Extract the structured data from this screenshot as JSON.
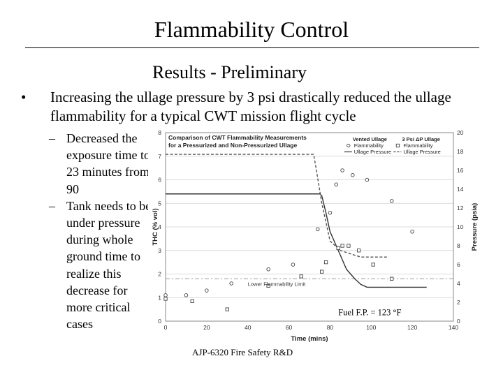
{
  "slide": {
    "title": "Flammability Control",
    "subtitle": "Results - Preliminary",
    "bullet_marker": "•",
    "bullet": "Increasing the ullage pressure by 3 psi drastically reduced the ullage flammability for a typical CWT mission flight cycle",
    "sub_bullet_marker": "–",
    "sub_bullets": [
      "Decreased the exposure time to 23 minutes from 90",
      "Tank needs to be under pressure during whole ground time to realize this decrease for more critical cases"
    ],
    "footer": "AJP-6320 Fire Safety R&D"
  },
  "chart_data": {
    "type": "scatter",
    "title": "Comparison of CWT Flammability Measurements",
    "subtitle": "for a Pressurized and Non-Pressurized Ullage",
    "xlabel": "Time (mins)",
    "ylabel": "THC (% vol)",
    "y2label": "Pressure (psia)",
    "xlim": [
      0,
      140
    ],
    "ylim": [
      0,
      8
    ],
    "y2lim": [
      0,
      20
    ],
    "xticks": [
      0,
      20,
      40,
      60,
      80,
      100,
      120,
      140
    ],
    "yticks": [
      0,
      1,
      2,
      3,
      4,
      5,
      6,
      7,
      8
    ],
    "y2ticks": [
      0,
      2,
      4,
      6,
      8,
      10,
      12,
      14,
      16,
      18,
      20
    ],
    "grid": "horizontal",
    "legend_groups": [
      {
        "title": "Vented Ullage",
        "entries": [
          "Flammability",
          "Ullage Pressure"
        ]
      },
      {
        "title": "3 Psi ΔP Ullage",
        "entries": [
          "Flammability",
          "Ullage Pressure"
        ]
      }
    ],
    "annotations": {
      "lower_limit_label": "Lower Flammability Limit",
      "lower_limit_value": 1.8,
      "fuel_fp": "Fuel F.P. = 123 °F"
    },
    "series": [
      {
        "name": "Flammability",
        "group": "Vented Ullage",
        "marker": "circle",
        "x": [
          0,
          10,
          20,
          32,
          50,
          62,
          74,
          80,
          83,
          86,
          91,
          98,
          110,
          120
        ],
        "y": [
          1.1,
          1.1,
          1.3,
          1.6,
          2.2,
          2.4,
          3.9,
          4.6,
          5.8,
          6.4,
          6.2,
          6.0,
          5.1,
          3.8
        ]
      },
      {
        "name": "Flammability",
        "group": "3 Psi ΔP Ullage",
        "marker": "square",
        "x": [
          0,
          13,
          30,
          50,
          66,
          76,
          78,
          84,
          86,
          89,
          94,
          101,
          110
        ],
        "y": [
          0.95,
          0.85,
          0.5,
          1.5,
          1.9,
          2.1,
          2.5,
          3.1,
          3.2,
          3.2,
          3.0,
          2.4,
          1.8
        ]
      },
      {
        "name": "Ullage Pressure",
        "group": "Vented Ullage",
        "line": "solid",
        "color": "#333333",
        "x": [
          0,
          75,
          76,
          78,
          80,
          83,
          86,
          88,
          92,
          95,
          98,
          105,
          120,
          127
        ],
        "y": [
          13.5,
          13.5,
          13.3,
          11.5,
          9.5,
          8.0,
          6.5,
          5.5,
          4.5,
          3.9,
          3.6,
          3.6,
          3.6,
          3.6
        ]
      },
      {
        "name": "Ullage Pressure",
        "group": "3 Psi ΔP Ullage",
        "line": "dashed",
        "color": "#555555",
        "x": [
          0,
          72,
          73,
          76,
          80,
          85,
          92,
          95,
          108
        ],
        "y": [
          17.7,
          17.7,
          16.5,
          12.5,
          8.5,
          7.5,
          7.0,
          6.8,
          6.8
        ]
      }
    ]
  }
}
